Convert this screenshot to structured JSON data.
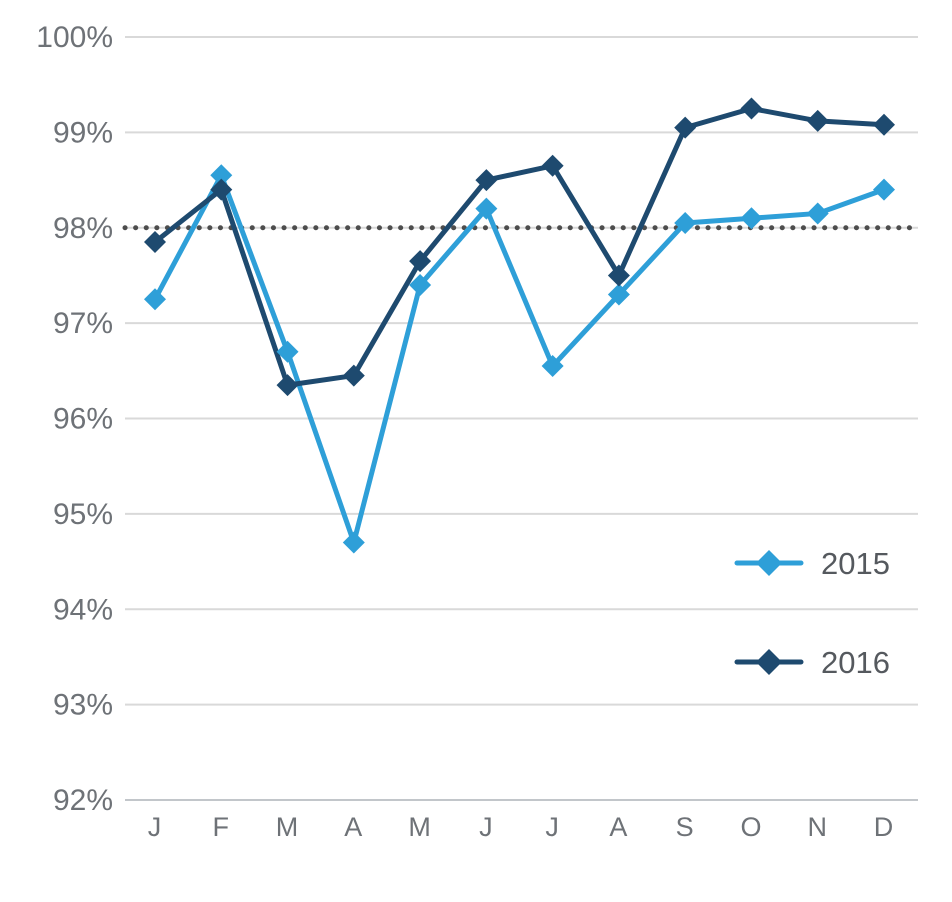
{
  "chart_data": {
    "type": "line",
    "title": "",
    "xlabel": "",
    "ylabel": "",
    "categories": [
      "J",
      "F",
      "M",
      "A",
      "M",
      "J",
      "J",
      "A",
      "S",
      "O",
      "N",
      "D"
    ],
    "series": [
      {
        "name": "2015",
        "color": "#2E9FD8",
        "values": [
          97.25,
          98.55,
          96.7,
          94.7,
          97.4,
          98.2,
          96.55,
          97.3,
          98.05,
          98.1,
          98.15,
          98.4
        ]
      },
      {
        "name": "2016",
        "color": "#1E4A6F",
        "values": [
          97.85,
          98.4,
          96.35,
          96.45,
          97.65,
          98.5,
          98.65,
          97.5,
          99.05,
          99.25,
          99.12,
          99.08
        ]
      }
    ],
    "reference_line": {
      "value": 98,
      "color": "#4D4D4D",
      "style": "dotted"
    },
    "ylim": [
      92,
      100
    ],
    "yticks": [
      92,
      93,
      94,
      95,
      96,
      97,
      98,
      99,
      100
    ],
    "ytick_suffix": "%",
    "grid": "horizontal",
    "legend_position": "right-middle",
    "legend_entries": [
      "2015",
      "2016"
    ]
  },
  "colors": {
    "grid": "#D9D9D9",
    "baseline": "#C2C6CA",
    "tick_label": "#6E7277",
    "legend_text": "#55595E",
    "background": "#FFFFFF"
  }
}
